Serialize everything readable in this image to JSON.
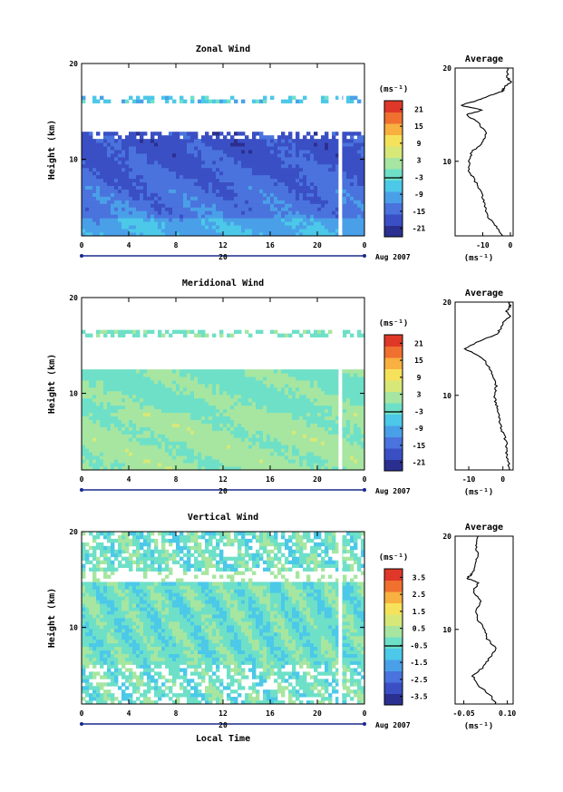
{
  "colors": {
    "scale": [
      "#2b2f8f",
      "#3a4fc4",
      "#4a73dd",
      "#4aa0e8",
      "#4cc8e8",
      "#6ee0c8",
      "#a6e6a0",
      "#d8e878",
      "#f6e25a",
      "#f8b040",
      "#f07030",
      "#e03828"
    ],
    "average_line": "#000000",
    "frame": "#000000",
    "date_bar": "#1a2a8a"
  },
  "chart_data": [
    {
      "type": "heatmap",
      "title": "Zonal Wind",
      "ylabel": "Height (km)",
      "xticks": [
        "0",
        "4",
        "8",
        "12",
        "16",
        "20",
        "0"
      ],
      "yticks": [
        "10",
        "20"
      ],
      "date_label": "20",
      "month_label": "Aug 2007",
      "ylim": [
        2,
        20
      ],
      "xlim": [
        0,
        24
      ],
      "colorbar": {
        "unit": "(ms⁻¹)",
        "ticks": [
          "21",
          "15",
          "9",
          "3",
          "-3",
          "-9",
          "-15",
          "-21"
        ],
        "range": [
          -24,
          24
        ]
      },
      "average": {
        "title": "Average",
        "xticks": [
          "-10",
          "0"
        ],
        "xlim": [
          -20,
          1
        ],
        "xunit": "(ms⁻¹)",
        "yticks": [
          "10",
          "20"
        ],
        "profile": [
          [
            2,
            -3
          ],
          [
            3,
            -5
          ],
          [
            4,
            -8
          ],
          [
            5,
            -9
          ],
          [
            6,
            -10
          ],
          [
            7,
            -11
          ],
          [
            8,
            -13
          ],
          [
            9,
            -15
          ],
          [
            10,
            -15
          ],
          [
            11,
            -14
          ],
          [
            12,
            -10
          ],
          [
            13,
            -9
          ],
          [
            14,
            -11
          ],
          [
            15,
            -16
          ],
          [
            15.5,
            -10
          ],
          [
            16,
            -18
          ],
          [
            16.5,
            -12
          ],
          [
            17,
            -8
          ],
          [
            17.5,
            -3
          ],
          [
            18,
            -2
          ],
          [
            18.5,
            0
          ],
          [
            19,
            -1
          ],
          [
            20,
            -1
          ]
        ]
      }
    },
    {
      "type": "heatmap",
      "title": "Meridional Wind",
      "ylabel": "Height (km)",
      "xticks": [
        "0",
        "4",
        "8",
        "12",
        "16",
        "20",
        "0"
      ],
      "yticks": [
        "10",
        "20"
      ],
      "date_label": "20",
      "month_label": "Aug 2007",
      "ylim": [
        2,
        20
      ],
      "xlim": [
        0,
        24
      ],
      "colorbar": {
        "unit": "(ms⁻¹)",
        "ticks": [
          "21",
          "15",
          "9",
          "3",
          "-3",
          "-9",
          "-15",
          "-21"
        ],
        "range": [
          -24,
          24
        ]
      },
      "average": {
        "title": "Average",
        "xticks": [
          "-10",
          "0"
        ],
        "xlim": [
          -14,
          3
        ],
        "xunit": "(ms⁻¹)",
        "yticks": [
          "10",
          "20"
        ],
        "profile": [
          [
            2,
            2
          ],
          [
            3,
            1.5
          ],
          [
            4,
            1
          ],
          [
            5,
            1
          ],
          [
            6,
            0
          ],
          [
            7,
            -1
          ],
          [
            8,
            -1
          ],
          [
            9,
            -2
          ],
          [
            10,
            -2.5
          ],
          [
            11,
            -2
          ],
          [
            12,
            -3
          ],
          [
            13,
            -4
          ],
          [
            14,
            -6
          ],
          [
            15,
            -11
          ],
          [
            16,
            -6
          ],
          [
            16.5,
            -2
          ],
          [
            17,
            -1
          ],
          [
            18,
            0.5
          ],
          [
            18.5,
            2
          ],
          [
            19,
            1
          ],
          [
            19.5,
            2
          ],
          [
            20,
            2
          ]
        ]
      }
    },
    {
      "type": "heatmap",
      "title": "Vertical Wind",
      "ylabel": "Height (km)",
      "xticks": [
        "0",
        "4",
        "8",
        "12",
        "16",
        "20",
        "0"
      ],
      "yticks": [
        "10",
        "20"
      ],
      "date_label": "20",
      "month_label": "Aug 2007",
      "xlabel": "Local Time",
      "ylim": [
        2,
        20
      ],
      "xlim": [
        0,
        24
      ],
      "colorbar": {
        "unit": "(ms⁻¹)",
        "ticks": [
          "3.5",
          "2.5",
          "1.5",
          "0.5",
          "-0.5",
          "-1.5",
          "-2.5",
          "-3.5"
        ],
        "range": [
          -4,
          4
        ]
      },
      "average": {
        "title": "Average",
        "xticks": [
          "-0.05",
          "0.10"
        ],
        "xlim": [
          -0.08,
          0.12
        ],
        "xunit": "(ms⁻¹)",
        "yticks": [
          "10",
          "20"
        ],
        "profile": [
          [
            2,
            0.06
          ],
          [
            3,
            0.04
          ],
          [
            4,
            0.0
          ],
          [
            5,
            -0.02
          ],
          [
            6,
            0.02
          ],
          [
            7,
            0.04
          ],
          [
            8,
            0.06
          ],
          [
            9,
            0.03
          ],
          [
            10,
            0.02
          ],
          [
            11,
            0.0
          ],
          [
            12,
            -0.01
          ],
          [
            13,
            0.01
          ],
          [
            14,
            -0.02
          ],
          [
            15,
            0.0
          ],
          [
            15.5,
            -0.04
          ],
          [
            16,
            -0.02
          ],
          [
            17,
            -0.01
          ],
          [
            18,
            0.0
          ],
          [
            19,
            -0.01
          ],
          [
            20,
            0.0
          ]
        ]
      }
    }
  ]
}
